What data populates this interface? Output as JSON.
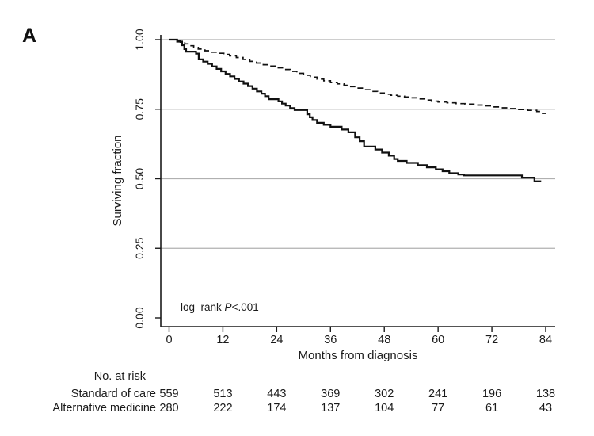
{
  "panel_label": "A",
  "colors": {
    "background": "#ffffff",
    "grid": "#b0b0b0",
    "axis": "#1a1a1a",
    "curve": "#111111",
    "text": "#1a1a1a"
  },
  "chart_data": {
    "type": "line",
    "subtype": "kaplan-meier-step",
    "title": "",
    "xlabel": "Months from diagnosis",
    "ylabel": "Surviving fraction",
    "xlim": [
      0,
      84
    ],
    "ylim": [
      0,
      1
    ],
    "grid": "horizontal-at-yticks-except-zero",
    "legend_position": "none",
    "xticks": [
      0,
      12,
      24,
      36,
      48,
      60,
      72,
      84
    ],
    "yticks": [
      {
        "label": "0.00",
        "value": 0.0
      },
      {
        "label": "0.25",
        "value": 0.25
      },
      {
        "label": "0.50",
        "value": 0.5
      },
      {
        "label": "0.75",
        "value": 0.75
      },
      {
        "label": "1.00",
        "value": 1.0
      }
    ],
    "gridline_values": [
      0.25,
      0.5,
      0.75,
      1.0
    ],
    "annotation": {
      "prefix": "log–rank ",
      "italic": "P",
      "suffix": "<.001"
    },
    "series": [
      {
        "name": "Standard of care",
        "style": "dashed",
        "points": [
          [
            0,
            1.0
          ],
          [
            1.5,
            0.996
          ],
          [
            2.5,
            0.991
          ],
          [
            3.5,
            0.985
          ],
          [
            4.5,
            0.978
          ],
          [
            5.5,
            0.972
          ],
          [
            6.5,
            0.966
          ],
          [
            8,
            0.96
          ],
          [
            9.5,
            0.955
          ],
          [
            11,
            0.951
          ],
          [
            12.2,
            0.947
          ],
          [
            13.5,
            0.942
          ],
          [
            15,
            0.936
          ],
          [
            16.5,
            0.929
          ],
          [
            18,
            0.922
          ],
          [
            19.5,
            0.916
          ],
          [
            21,
            0.91
          ],
          [
            22.5,
            0.905
          ],
          [
            24,
            0.899
          ],
          [
            25.5,
            0.893
          ],
          [
            27,
            0.886
          ],
          [
            28.5,
            0.879
          ],
          [
            30,
            0.872
          ],
          [
            31.5,
            0.865
          ],
          [
            33,
            0.858
          ],
          [
            34.5,
            0.852
          ],
          [
            36,
            0.846
          ],
          [
            37.5,
            0.841
          ],
          [
            39,
            0.836
          ],
          [
            40.5,
            0.831
          ],
          [
            42,
            0.826
          ],
          [
            43.5,
            0.82
          ],
          [
            45,
            0.814
          ],
          [
            46.5,
            0.808
          ],
          [
            48,
            0.804
          ],
          [
            49.5,
            0.8
          ],
          [
            51,
            0.797
          ],
          [
            52.5,
            0.794
          ],
          [
            54,
            0.791
          ],
          [
            55.5,
            0.787
          ],
          [
            57,
            0.783
          ],
          [
            58.5,
            0.779
          ],
          [
            60,
            0.776
          ],
          [
            62,
            0.773
          ],
          [
            64,
            0.77
          ],
          [
            66,
            0.768
          ],
          [
            68,
            0.765
          ],
          [
            70,
            0.762
          ],
          [
            72,
            0.758
          ],
          [
            74,
            0.755
          ],
          [
            76,
            0.752
          ],
          [
            78,
            0.749
          ],
          [
            80,
            0.746
          ],
          [
            82,
            0.742
          ],
          [
            83.3,
            0.735
          ],
          [
            84,
            0.733
          ]
        ]
      },
      {
        "name": "Alternative medicine",
        "style": "solid",
        "points": [
          [
            0,
            1.0
          ],
          [
            1.8,
            0.993
          ],
          [
            2.9,
            0.98
          ],
          [
            3.4,
            0.966
          ],
          [
            3.8,
            0.957
          ],
          [
            6,
            0.95
          ],
          [
            6.6,
            0.929
          ],
          [
            7.6,
            0.921
          ],
          [
            8.6,
            0.913
          ],
          [
            9.6,
            0.904
          ],
          [
            10.6,
            0.895
          ],
          [
            11.6,
            0.886
          ],
          [
            12.6,
            0.877
          ],
          [
            13.6,
            0.868
          ],
          [
            14.6,
            0.859
          ],
          [
            15.6,
            0.85
          ],
          [
            16.6,
            0.842
          ],
          [
            17.6,
            0.833
          ],
          [
            18.6,
            0.824
          ],
          [
            19.6,
            0.814
          ],
          [
            20.6,
            0.806
          ],
          [
            21.4,
            0.797
          ],
          [
            22.2,
            0.786
          ],
          [
            24.4,
            0.778
          ],
          [
            25.2,
            0.77
          ],
          [
            26,
            0.763
          ],
          [
            27,
            0.754
          ],
          [
            28,
            0.747
          ],
          [
            30.8,
            0.732
          ],
          [
            31.4,
            0.721
          ],
          [
            32,
            0.711
          ],
          [
            33,
            0.701
          ],
          [
            34.5,
            0.694
          ],
          [
            36,
            0.687
          ],
          [
            38.5,
            0.677
          ],
          [
            40,
            0.667
          ],
          [
            41.5,
            0.649
          ],
          [
            42.5,
            0.635
          ],
          [
            43.5,
            0.616
          ],
          [
            46,
            0.605
          ],
          [
            47.5,
            0.594
          ],
          [
            49,
            0.583
          ],
          [
            50.2,
            0.571
          ],
          [
            51,
            0.564
          ],
          [
            53,
            0.557
          ],
          [
            55.5,
            0.549
          ],
          [
            57.5,
            0.541
          ],
          [
            59.5,
            0.534
          ],
          [
            61,
            0.527
          ],
          [
            62.5,
            0.52
          ],
          [
            64.5,
            0.515
          ],
          [
            65.8,
            0.512
          ],
          [
            78.7,
            0.504
          ],
          [
            81.5,
            0.491
          ],
          [
            83,
            0.491
          ]
        ]
      }
    ],
    "risk_table": {
      "title": "No. at risk",
      "times": [
        0,
        12,
        24,
        36,
        48,
        60,
        72,
        84
      ],
      "rows": [
        {
          "label": "Standard of care",
          "values": [
            559,
            513,
            443,
            369,
            302,
            241,
            196,
            138
          ]
        },
        {
          "label": "Alternative medicine",
          "values": [
            280,
            222,
            174,
            137,
            104,
            77,
            61,
            43
          ]
        }
      ]
    }
  }
}
